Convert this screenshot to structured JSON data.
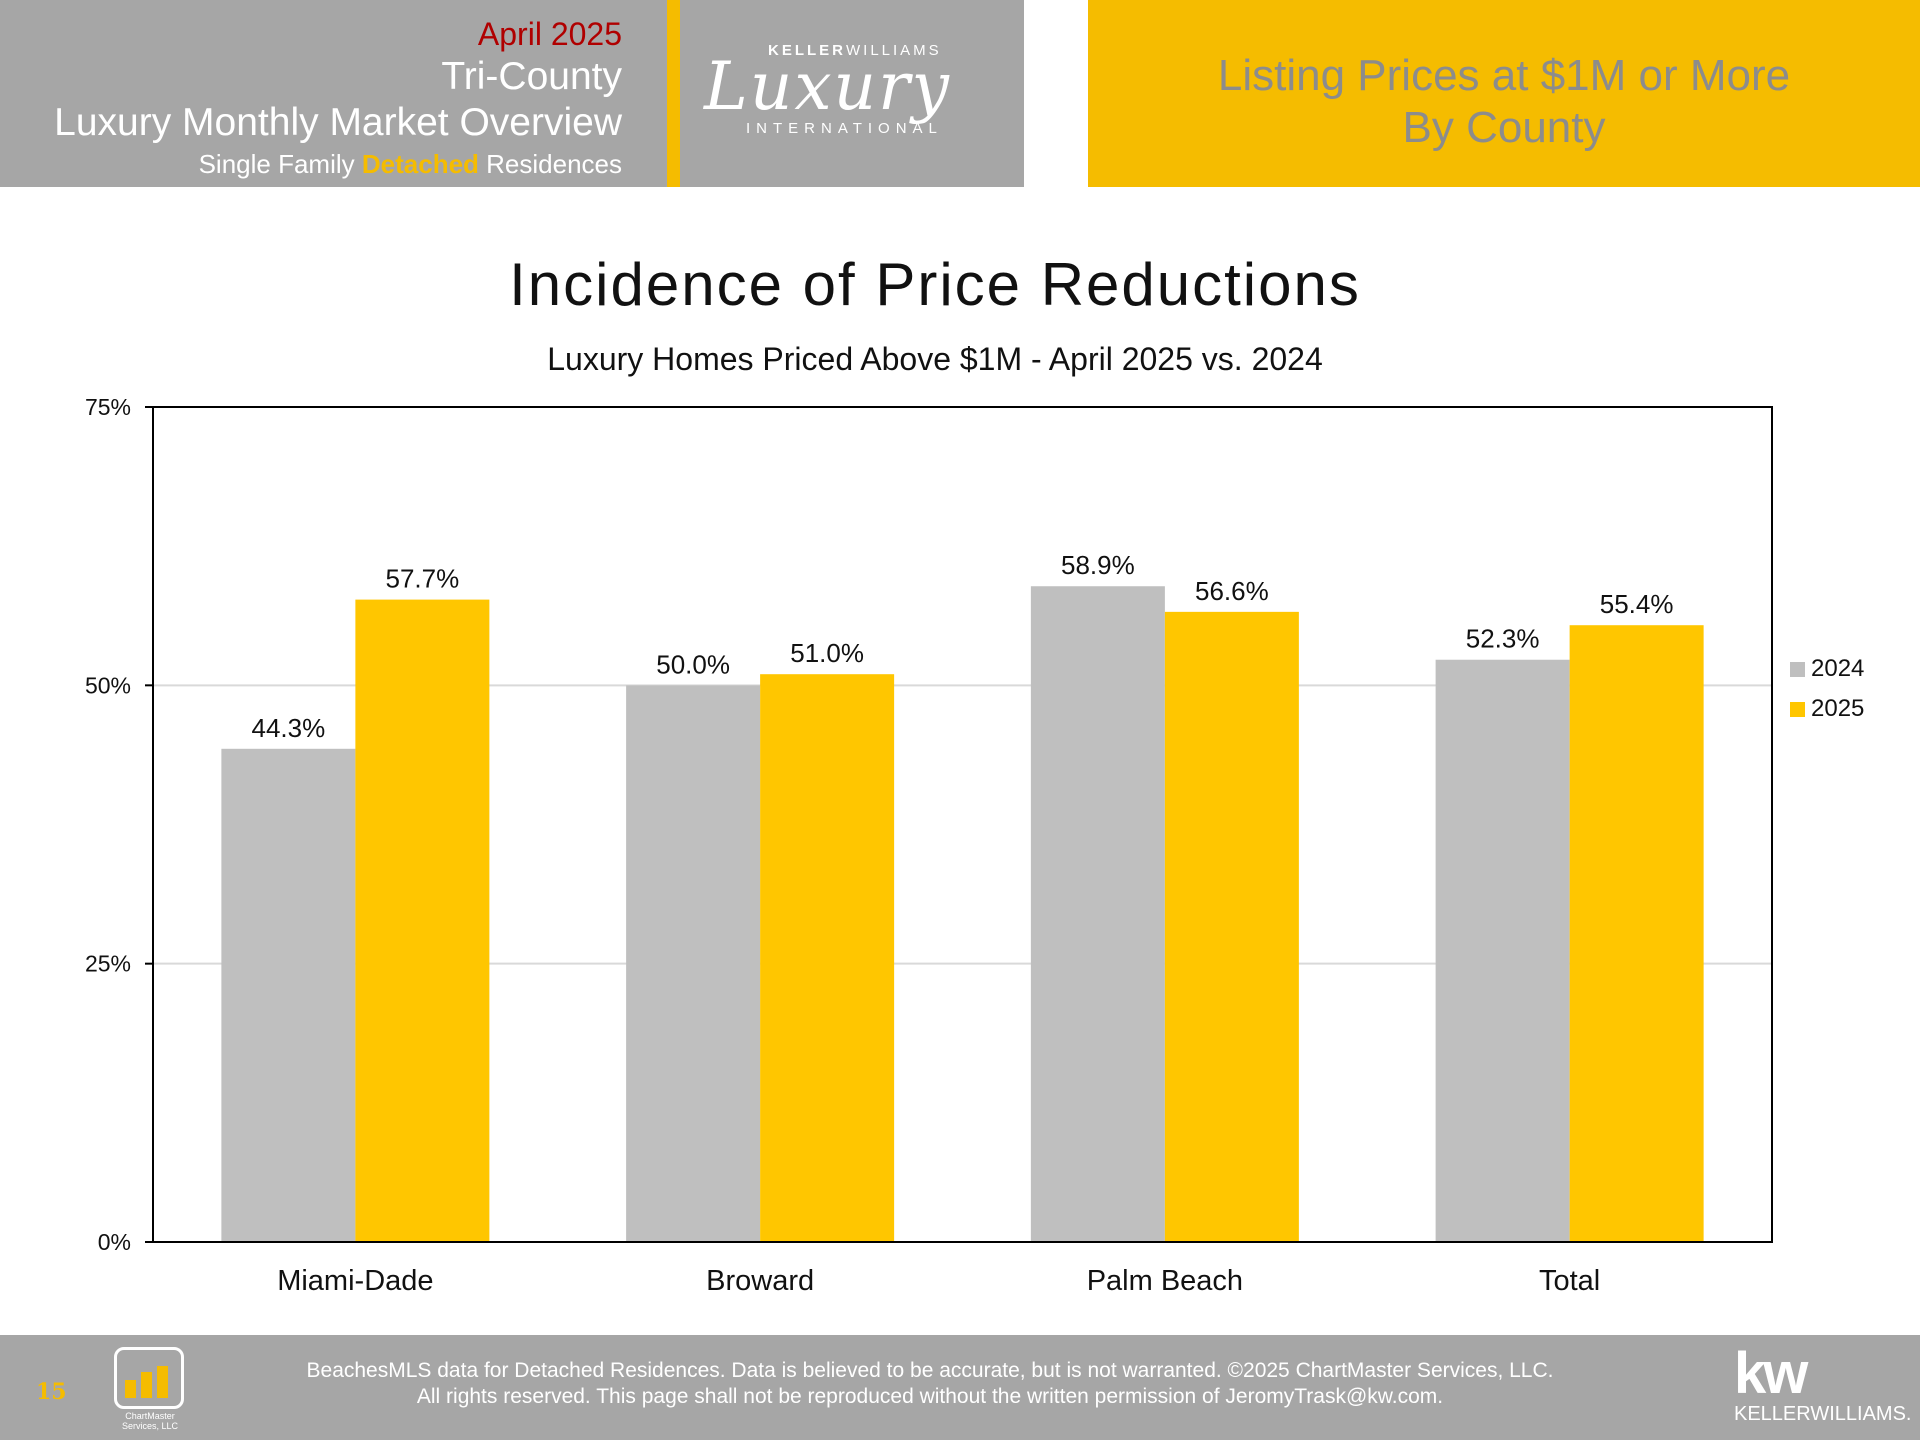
{
  "header": {
    "month": "April 2025",
    "line1": "Tri-County",
    "line2": "Luxury Monthly Market Overview",
    "sub_prefix": "Single Family ",
    "sub_highlight": "Detached",
    "sub_suffix": " Residences",
    "right_line1": "Listing Prices at $1M or More",
    "right_line2": "By County"
  },
  "logo": {
    "brand_a": "KELLER",
    "brand_b": "WILLIAMS",
    "script": "Luxury",
    "intl": "INTERNATIONAL"
  },
  "chart_data": {
    "type": "bar",
    "title": "Incidence of Price Reductions",
    "subtitle": "Luxury Homes Priced Above $1M - April 2025 vs. 2024",
    "categories": [
      "Miami-Dade",
      "Broward",
      "Palm Beach",
      "Total"
    ],
    "series": [
      {
        "name": "2024",
        "values": [
          44.3,
          50.0,
          58.9,
          52.3
        ],
        "labels": [
          "44.3%",
          "50.0%",
          "58.9%",
          "52.3%"
        ],
        "color": "#bfbfbf"
      },
      {
        "name": "2025",
        "values": [
          57.7,
          51.0,
          56.6,
          55.4
        ],
        "labels": [
          "57.7%",
          "51.0%",
          "56.6%",
          "55.4%"
        ],
        "color": "#ffc600"
      }
    ],
    "ylim": [
      0,
      75
    ],
    "yticks": [
      0,
      25,
      50,
      75
    ],
    "ytick_labels": [
      "0%",
      "25%",
      "50%",
      "75%"
    ],
    "xlabel": "",
    "ylabel": "",
    "grid": true,
    "legend_position": "right"
  },
  "footer": {
    "page_number": "15",
    "chartmaster_text": "ChartMaster Services, LLC",
    "line1": "BeachesMLS data for Detached Residences.  Data is believed to be accurate, but is not warranted.   ©2025  ChartMaster Services, LLC.",
    "line2": "All rights reserved. This page shall not be reproduced without the written permission of JeromyTrask@kw.com.",
    "kw_big": "kw",
    "kw_small": "KELLERWILLIAMS."
  },
  "colors": {
    "header_gray": "#a6a6a6",
    "accent_gold": "#f5bc00",
    "month_red": "#b00000",
    "bar_2024": "#bfbfbf",
    "bar_2025": "#ffc600"
  }
}
